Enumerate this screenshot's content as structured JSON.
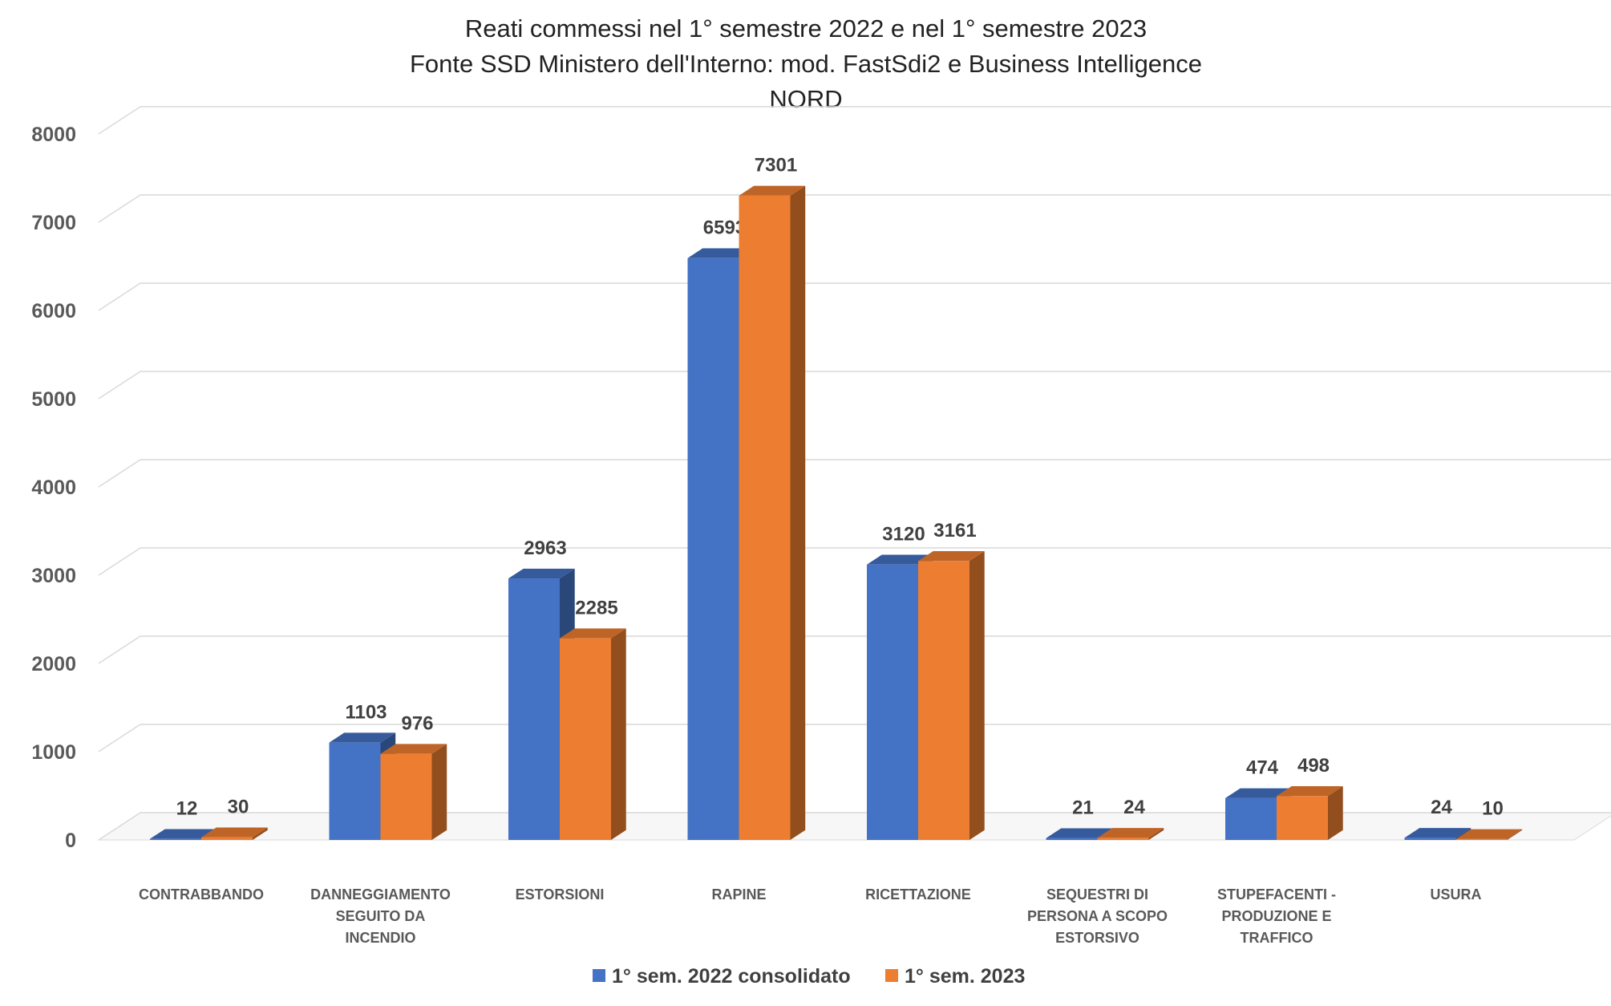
{
  "chart_data": {
    "type": "bar",
    "title_lines": [
      "Reati commessi nel 1° semestre 2022 e nel 1° semestre 2023",
      "Fonte SSD Ministero dell'Interno: mod. FastSdi2 e Business Intelligence",
      "NORD"
    ],
    "categories": [
      [
        "CONTRABBANDO"
      ],
      [
        "DANNEGGIAMENTO",
        "SEGUITO DA",
        "INCENDIO"
      ],
      [
        "ESTORSIONI"
      ],
      [
        "RAPINE"
      ],
      [
        "RICETTAZIONE"
      ],
      [
        "SEQUESTRI DI",
        "PERSONA A SCOPO",
        "ESTORSIVO"
      ],
      [
        "STUPEFACENTI -",
        "PRODUZIONE E",
        "TRAFFICO"
      ],
      [
        "USURA"
      ]
    ],
    "series": [
      {
        "name": "1° sem. 2022 consolidato",
        "color": "#4472C4",
        "values": [
          12,
          1103,
          2963,
          6593,
          3120,
          21,
          474,
          24
        ]
      },
      {
        "name": "1° sem. 2023",
        "color": "#ED7D31",
        "values": [
          30,
          976,
          2285,
          7301,
          3161,
          24,
          498,
          10
        ]
      }
    ],
    "ylim": [
      0,
      8000
    ],
    "yticks": [
      "0",
      "1000",
      "2000",
      "3000",
      "4000",
      "5000",
      "6000",
      "7000",
      "8000"
    ],
    "grid": true,
    "legend_position": "bottom",
    "style": "3d-clustered-column"
  }
}
